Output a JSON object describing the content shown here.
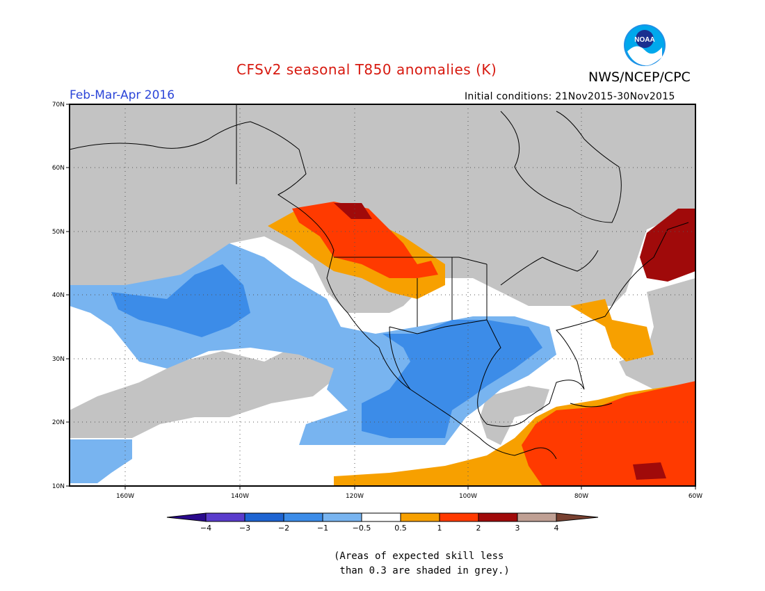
{
  "title": "CFSv2 seasonal T850 anomalies (K)",
  "organization": "NWS/NCEP/CPC",
  "logo_text": "NOAA",
  "period": "Feb-Mar-Apr 2016",
  "initial_conditions": "Initial conditions: 21Nov2015-30Nov2015",
  "latitude_labels": [
    "70N",
    "60N",
    "50N",
    "40N",
    "30N",
    "20N",
    "10N"
  ],
  "longitude_labels": [
    "160W",
    "140W",
    "120W",
    "100W",
    "80W",
    "60W"
  ],
  "colorbar": {
    "tick_labels": [
      "−4",
      "−3",
      "−2",
      "−1",
      "−0.5",
      "0.5",
      "1",
      "2",
      "3",
      "4"
    ],
    "colors": [
      "#2a0a8c",
      "#5a3ccc",
      "#1e64d2",
      "#3c8ce8",
      "#78b4f0",
      "#ffffff",
      "#f7a000",
      "#ff3a00",
      "#a00a0a",
      "#c0a094",
      "#784030"
    ]
  },
  "note_line1": "(Areas of expected skill less",
  "note_line2": " than 0.3 are shaded in grey.)",
  "colors": {
    "skill_grey": "#c3c3c3",
    "title_red": "#d7190f",
    "period_blue": "#2b45d8"
  }
}
